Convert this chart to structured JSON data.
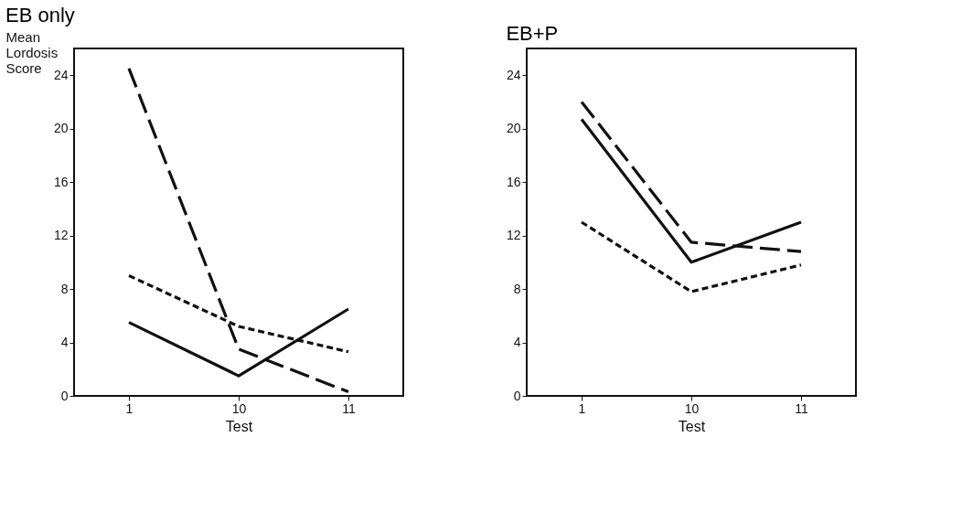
{
  "chart_data": [
    {
      "type": "line",
      "title": "EB only",
      "xlabel": "Test",
      "ylabel": "Mean Lordosis Score",
      "categories": [
        "1",
        "10",
        "11"
      ],
      "ylim": [
        0,
        26
      ],
      "yticks": [
        0,
        4,
        8,
        12,
        16,
        20,
        24
      ],
      "grid": false,
      "legend": false,
      "marker": "none",
      "series": [
        {
          "color": "#111111",
          "line_style": "dashed",
          "values": [
            24.5,
            3.5,
            0.3
          ]
        },
        {
          "color": "#111111",
          "line_style": "dotted",
          "values": [
            9.0,
            5.2,
            3.3
          ]
        },
        {
          "color": "#111111",
          "line_style": "solid",
          "values": [
            5.5,
            1.5,
            6.5
          ]
        }
      ]
    },
    {
      "type": "line",
      "title": "EB+P",
      "xlabel": "Test",
      "categories": [
        "1",
        "10",
        "11"
      ],
      "ylim": [
        0,
        26
      ],
      "yticks": [
        0,
        4,
        8,
        12,
        16,
        20,
        24
      ],
      "grid": false,
      "legend": false,
      "marker": "none",
      "series": [
        {
          "color": "#111111",
          "line_style": "dashed",
          "values": [
            22.0,
            11.5,
            10.8
          ]
        },
        {
          "color": "#111111",
          "line_style": "dotted",
          "values": [
            13.0,
            7.8,
            9.8
          ]
        },
        {
          "color": "#111111",
          "line_style": "solid",
          "values": [
            20.7,
            10.0,
            13.0
          ]
        }
      ]
    }
  ]
}
